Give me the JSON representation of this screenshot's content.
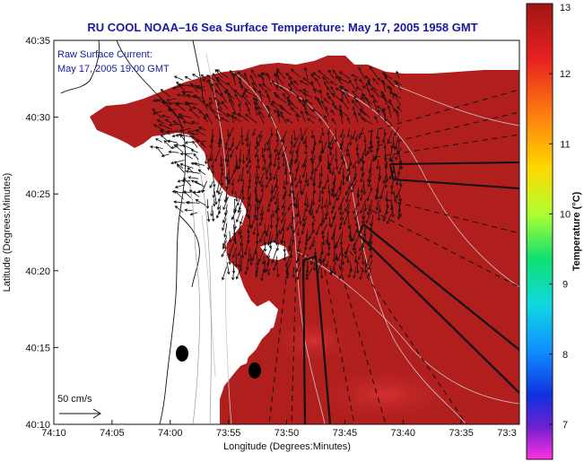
{
  "title": "RU COOL  NOAA–16  Sea Surface Temperature:  May 17, 2005 1958 GMT",
  "legend_note": {
    "line1": "Raw Surface Current:",
    "line2": "May 17, 2005 19:00 GMT"
  },
  "scale_bar": {
    "label": "50 cm/s"
  },
  "colors": {
    "warm": "#b01e1e",
    "warm_light": "#c42626",
    "land": "#ffffff",
    "title": "#1a1aa0"
  },
  "chart_data": {
    "type": "heatmap",
    "title": "RU COOL  NOAA–16  Sea Surface Temperature:  May 17, 2005 1958 GMT",
    "xlabel": "Longitude (Degrees:Minutes)",
    "ylabel": "Latitude (Degrees:Minutes)",
    "x_ticks": [
      "74:10",
      "74:05",
      "74:00",
      "73:55",
      "73:50",
      "73:45",
      "73:40",
      "73:35",
      "73:3"
    ],
    "y_ticks": [
      "40:35",
      "40:30",
      "40:25",
      "40:20",
      "40:15",
      "40:10"
    ],
    "colorbar": {
      "label": "Temperature (°C)",
      "ticks": [
        "13",
        "12",
        "11",
        "10",
        "9",
        "8",
        "7"
      ],
      "range": [
        6.5,
        13
      ]
    }
  }
}
